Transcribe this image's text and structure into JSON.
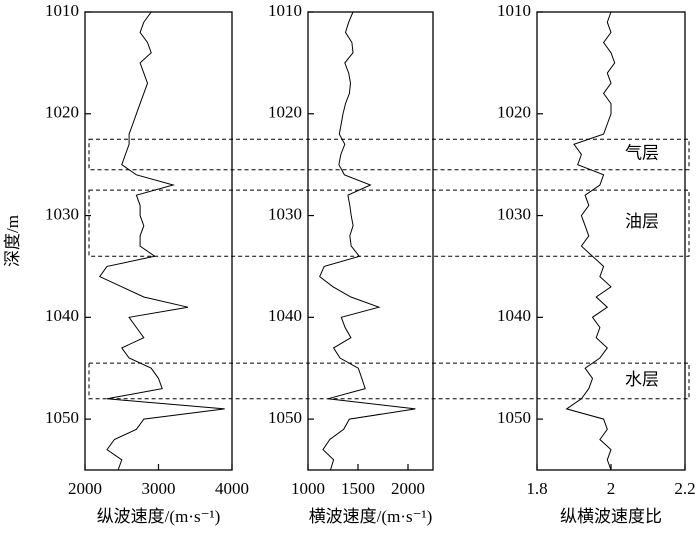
{
  "chart_data": [
    {
      "type": "line",
      "x_label": "纵波速度/(m·s⁻¹)",
      "y_label": "深度/m",
      "xlim": [
        2000,
        4000
      ],
      "xticks": [
        2000,
        3000,
        4000
      ],
      "ylim": [
        1010,
        1055
      ],
      "yticks": [
        1010,
        1020,
        1030,
        1040,
        1050
      ],
      "y": [
        1010,
        1011,
        1012,
        1013,
        1014,
        1015,
        1016,
        1017,
        1018,
        1019,
        1020,
        1021,
        1022,
        1023,
        1024,
        1025,
        1026,
        1027,
        1028,
        1029,
        1030,
        1031,
        1032,
        1033,
        1034,
        1035,
        1036,
        1037,
        1038,
        1039,
        1040,
        1041,
        1042,
        1043,
        1044,
        1045,
        1046,
        1047,
        1048,
        1049,
        1050,
        1051,
        1052,
        1053,
        1054,
        1055
      ],
      "values": [
        2900,
        2800,
        2750,
        2850,
        2900,
        2750,
        2800,
        2850,
        2800,
        2750,
        2700,
        2650,
        2600,
        2600,
        2550,
        2500,
        2700,
        3200,
        2700,
        2750,
        2750,
        2800,
        2750,
        2750,
        2950,
        2300,
        2200,
        2500,
        2800,
        3400,
        2600,
        2700,
        2800,
        2500,
        2600,
        2900,
        3000,
        3050,
        2300,
        3900,
        2800,
        2700,
        2400,
        2300,
        2500,
        2450
      ],
      "color": "#000000"
    },
    {
      "type": "line",
      "x_label": "横波速度/(m·s⁻¹)",
      "xlim": [
        1000,
        2250
      ],
      "xticks": [
        1000,
        1500,
        2000
      ],
      "ylim": [
        1010,
        1055
      ],
      "yticks": [
        1010,
        1020,
        1030,
        1040,
        1050
      ],
      "y": [
        1010,
        1011,
        1012,
        1013,
        1014,
        1015,
        1016,
        1017,
        1018,
        1019,
        1020,
        1021,
        1022,
        1023,
        1024,
        1025,
        1026,
        1027,
        1028,
        1029,
        1030,
        1031,
        1032,
        1033,
        1034,
        1035,
        1036,
        1037,
        1038,
        1039,
        1040,
        1041,
        1042,
        1043,
        1044,
        1045,
        1046,
        1047,
        1048,
        1049,
        1050,
        1051,
        1052,
        1053,
        1054,
        1055
      ],
      "values": [
        1450,
        1407,
        1375,
        1439,
        1450,
        1368,
        1407,
        1425,
        1414,
        1375,
        1350,
        1332,
        1313,
        1368,
        1328,
        1309,
        1364,
        1624,
        1399,
        1418,
        1432,
        1451,
        1418,
        1432,
        1513,
        1162,
        1117,
        1250,
        1429,
        1709,
        1333,
        1371,
        1429,
        1256,
        1320,
        1503,
        1538,
        1572,
        1198,
        2074,
        1414,
        1357,
        1218,
        1150,
        1256,
        1225
      ],
      "color": "#000000"
    },
    {
      "type": "line",
      "x_label": "纵横波速度比",
      "xlim": [
        1.8,
        2.2
      ],
      "xticks": [
        1.8,
        2,
        2.2
      ],
      "ylim": [
        1010,
        1055
      ],
      "yticks": [
        1010,
        1020,
        1030,
        1040,
        1050
      ],
      "y": [
        1010,
        1011,
        1012,
        1013,
        1014,
        1015,
        1016,
        1017,
        1018,
        1019,
        1020,
        1021,
        1022,
        1023,
        1024,
        1025,
        1026,
        1027,
        1028,
        1029,
        1030,
        1031,
        1032,
        1033,
        1034,
        1035,
        1036,
        1037,
        1038,
        1039,
        1040,
        1041,
        1042,
        1043,
        1044,
        1045,
        1046,
        1047,
        1048,
        1049,
        1050,
        1051,
        1052,
        1053,
        1054,
        1055
      ],
      "values": [
        2.0,
        1.99,
        2.0,
        1.98,
        2.0,
        2.01,
        1.99,
        2.0,
        1.98,
        2.0,
        2.0,
        1.99,
        1.98,
        1.9,
        1.92,
        1.91,
        1.98,
        1.97,
        1.93,
        1.94,
        1.92,
        1.93,
        1.94,
        1.92,
        1.95,
        1.98,
        1.97,
        2.0,
        1.96,
        1.99,
        1.95,
        1.97,
        1.96,
        1.99,
        1.97,
        1.93,
        1.95,
        1.94,
        1.92,
        1.88,
        1.98,
        1.99,
        1.97,
        2.0,
        1.99,
        2.0
      ],
      "color": "#000000"
    }
  ],
  "zones": [
    {
      "label": "气层",
      "top": 1022.5,
      "bottom": 1025.5
    },
    {
      "label": "油层",
      "top": 1027.5,
      "bottom": 1034
    },
    {
      "label": "水层",
      "top": 1044.5,
      "bottom": 1048
    }
  ]
}
